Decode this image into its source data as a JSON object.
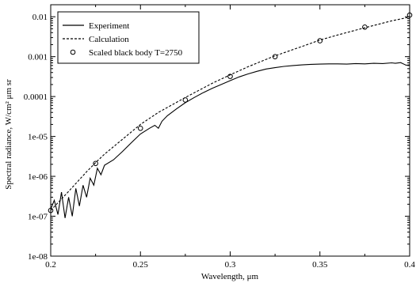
{
  "chart_data": {
    "type": "line",
    "title": "",
    "xlabel": "Wavelength, μm",
    "ylabel": "Spectral radiance, W/cm² μm sr",
    "xlim": [
      0.2,
      0.4
    ],
    "ylim": [
      1e-08,
      0.02
    ],
    "yscale": "log",
    "grid": false,
    "legend_position": "top-left",
    "x_ticks": [
      0.2,
      0.25,
      0.3,
      0.35,
      0.4
    ],
    "x_tick_labels": [
      "0.2",
      "0.25",
      "0.3",
      "0.35",
      "0.4"
    ],
    "y_ticks": [
      1e-08,
      1e-07,
      1e-06,
      1e-05,
      0.0001,
      0.001,
      0.01
    ],
    "y_tick_labels": [
      "1e-08",
      "1e-07",
      "1e-06",
      "1e-05",
      "0.0001",
      "0.001",
      "0.01"
    ],
    "series": [
      {
        "name": "Experiment",
        "style": "solid",
        "color": "#000000",
        "x": [
          0.2,
          0.202,
          0.204,
          0.206,
          0.208,
          0.21,
          0.212,
          0.214,
          0.216,
          0.218,
          0.22,
          0.222,
          0.224,
          0.226,
          0.228,
          0.23,
          0.235,
          0.24,
          0.245,
          0.25,
          0.255,
          0.258,
          0.26,
          0.262,
          0.265,
          0.27,
          0.275,
          0.28,
          0.285,
          0.29,
          0.295,
          0.3,
          0.305,
          0.31,
          0.315,
          0.32,
          0.325,
          0.33,
          0.335,
          0.34,
          0.345,
          0.35,
          0.355,
          0.36,
          0.365,
          0.37,
          0.375,
          0.38,
          0.385,
          0.39,
          0.392,
          0.395,
          0.398,
          0.4
        ],
        "y": [
          1.5e-07,
          2.5e-07,
          1.1e-07,
          4e-07,
          9e-08,
          3e-07,
          1e-07,
          5e-07,
          1.8e-07,
          6e-07,
          3e-07,
          9e-07,
          6e-07,
          1.6e-06,
          1.1e-06,
          1.9e-06,
          2.6e-06,
          4.2e-06,
          7e-06,
          1.15e-05,
          1.6e-05,
          1.9e-05,
          1.6e-05,
          2.4e-05,
          3.3e-05,
          4.9e-05,
          7e-05,
          9.5e-05,
          0.000125,
          0.00016,
          0.0002,
          0.00025,
          0.00031,
          0.00037,
          0.00043,
          0.00049,
          0.00053,
          0.00057,
          0.0006,
          0.00062,
          0.00064,
          0.00065,
          0.00066,
          0.00066,
          0.00065,
          0.00067,
          0.00066,
          0.00068,
          0.00067,
          0.0007,
          0.00068,
          0.00071,
          0.00061,
          0.00062
        ]
      },
      {
        "name": "Calculation",
        "style": "dashed",
        "color": "#000000",
        "x": [
          0.2,
          0.21,
          0.22,
          0.225,
          0.23,
          0.24,
          0.25,
          0.26,
          0.275,
          0.29,
          0.3,
          0.31,
          0.325,
          0.34,
          0.35,
          0.36,
          0.375,
          0.39,
          0.4
        ],
        "y": [
          1.4e-07,
          4.2e-07,
          1.3e-06,
          2.2e-06,
          3.6e-06,
          8.5e-06,
          2e-05,
          4e-05,
          9.5e-05,
          0.000215,
          0.00035,
          0.00056,
          0.00105,
          0.0018,
          0.0026,
          0.0035,
          0.0053,
          0.0079,
          0.0098
        ]
      },
      {
        "name": "Scaled black body T=2750",
        "style": "markers",
        "marker": "circle",
        "color": "#000000",
        "x": [
          0.2,
          0.225,
          0.25,
          0.275,
          0.3,
          0.325,
          0.35,
          0.375,
          0.4
        ],
        "y": [
          1.4e-07,
          2.1e-06,
          1.6e-05,
          8.2e-05,
          0.00032,
          0.001,
          0.0025,
          0.0055,
          0.011
        ]
      }
    ]
  }
}
